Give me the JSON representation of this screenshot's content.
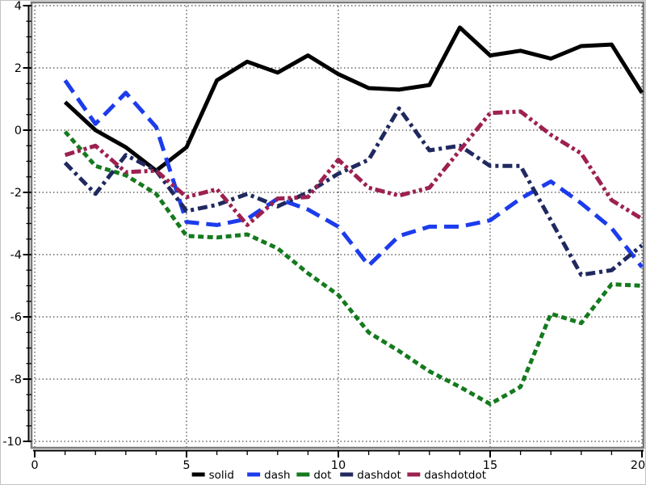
{
  "window": {
    "background": "#ffffff",
    "plot_border_color": "#7b7b7b",
    "grid_style": "dotted-black"
  },
  "axes": {
    "x_tick_labels": [
      "0",
      "5",
      "10",
      "15",
      "20"
    ],
    "y_tick_labels": [
      "4",
      "2",
      "0",
      "-2",
      "-4",
      "-6",
      "-8",
      "-10"
    ]
  },
  "legend": {
    "position": "bottom-center",
    "items": [
      "solid",
      "dash",
      "dot",
      "dashdot",
      "dashdotdot"
    ]
  },
  "chart_data": {
    "type": "line",
    "title": "",
    "xlabel": "",
    "ylabel": "",
    "xlim": [
      0,
      20
    ],
    "ylim": [
      -10,
      4
    ],
    "x_major_ticks": [
      0,
      5,
      10,
      15,
      20
    ],
    "y_major_ticks": [
      4,
      2,
      0,
      -2,
      -4,
      -6,
      -8,
      -10
    ],
    "x_minor_step": 1,
    "y_minor_step": 0.5,
    "grid": "dotted",
    "legend_position": "bottom-center",
    "x": [
      1,
      2,
      3,
      4,
      5,
      6,
      7,
      8,
      9,
      10,
      11,
      12,
      13,
      14,
      15,
      16,
      17,
      18,
      19,
      20
    ],
    "series": [
      {
        "name": "solid",
        "color": "#000000",
        "style": "solid",
        "values": [
          0.9,
          0.0,
          -0.55,
          -1.3,
          -0.55,
          1.6,
          2.2,
          1.85,
          2.4,
          1.8,
          1.35,
          1.3,
          1.45,
          3.3,
          2.4,
          2.55,
          2.3,
          2.7,
          2.75,
          1.2
        ]
      },
      {
        "name": "dash",
        "color": "#1c3cec",
        "style": "dash",
        "values": [
          1.6,
          0.2,
          1.2,
          0.1,
          -2.95,
          -3.05,
          -2.85,
          -2.2,
          -2.55,
          -3.1,
          -4.35,
          -3.4,
          -3.1,
          -3.1,
          -2.9,
          -2.2,
          -1.65,
          -2.35,
          -3.15,
          -4.4
        ]
      },
      {
        "name": "dot",
        "color": "#157a1e",
        "style": "dot",
        "values": [
          -0.05,
          -1.15,
          -1.45,
          -2.05,
          -3.4,
          -3.45,
          -3.35,
          -3.8,
          -4.6,
          -5.3,
          -6.5,
          -7.1,
          -7.75,
          -8.25,
          -8.8,
          -8.25,
          -5.9,
          -6.2,
          -4.95,
          -5.0
        ]
      },
      {
        "name": "dashdot",
        "color": "#20295f",
        "style": "dashdot",
        "values": [
          -1.05,
          -2.05,
          -0.8,
          -1.3,
          -2.6,
          -2.4,
          -2.05,
          -2.45,
          -2.0,
          -1.4,
          -0.95,
          0.7,
          -0.65,
          -0.5,
          -1.15,
          -1.15,
          -2.9,
          -4.65,
          -4.5,
          -3.7
        ]
      },
      {
        "name": "dashdotdot",
        "color": "#9c2150",
        "style": "dashdotdot",
        "values": [
          -0.8,
          -0.5,
          -1.35,
          -1.3,
          -2.15,
          -1.9,
          -3.05,
          -2.2,
          -2.15,
          -0.95,
          -1.85,
          -2.1,
          -1.85,
          -0.65,
          0.55,
          0.6,
          -0.15,
          -0.75,
          -2.25,
          -2.85
        ]
      }
    ]
  }
}
